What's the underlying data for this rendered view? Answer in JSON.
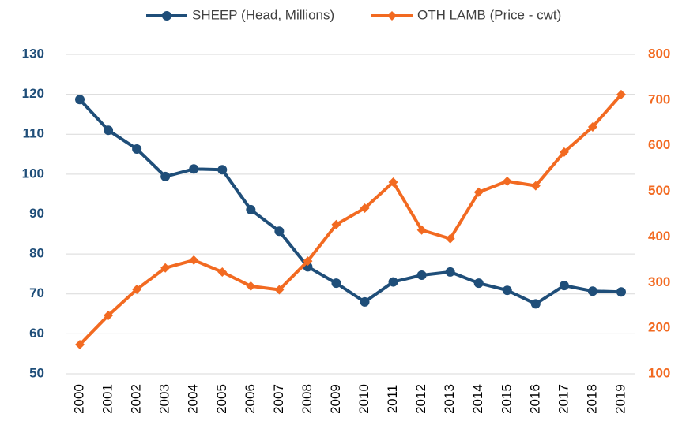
{
  "chart_data": {
    "type": "line",
    "categories": [
      "2000",
      "2001",
      "2002",
      "2003",
      "2004",
      "2005",
      "2006",
      "2007",
      "2008",
      "2009",
      "2010",
      "2011",
      "2012",
      "2013",
      "2014",
      "2015",
      "2016",
      "2017",
      "2018",
      "2019"
    ],
    "series": [
      {
        "name": "SHEEP (Head, Millions)",
        "color": "#1f4e79",
        "marker": "circle",
        "values": [
          118.7,
          111,
          106.3,
          99.4,
          101.3,
          101.1,
          91.1,
          85.7,
          76.8,
          72.7,
          68,
          73,
          74.7,
          75.5,
          72.7,
          70.9,
          67.5,
          72.1,
          70.7,
          70.5
        ]
      },
      {
        "name": "OTH LAMB (Price - cwt)",
        "color": "#f26a21",
        "marker": "diamond",
        "axis": "y2",
        "values": [
          164,
          228,
          285,
          332,
          349,
          323,
          292,
          284,
          347,
          427,
          463,
          520,
          415,
          396,
          498,
          522,
          512,
          586,
          641,
          712
        ]
      }
    ],
    "ylim": [
      50,
      130
    ],
    "yticks": [
      50,
      60,
      70,
      80,
      90,
      100,
      110,
      120,
      130
    ],
    "y2lim": [
      100,
      800
    ],
    "y2ticks": [
      100,
      200,
      300,
      400,
      500,
      600,
      700,
      800
    ],
    "grid": true,
    "legend": "top"
  }
}
